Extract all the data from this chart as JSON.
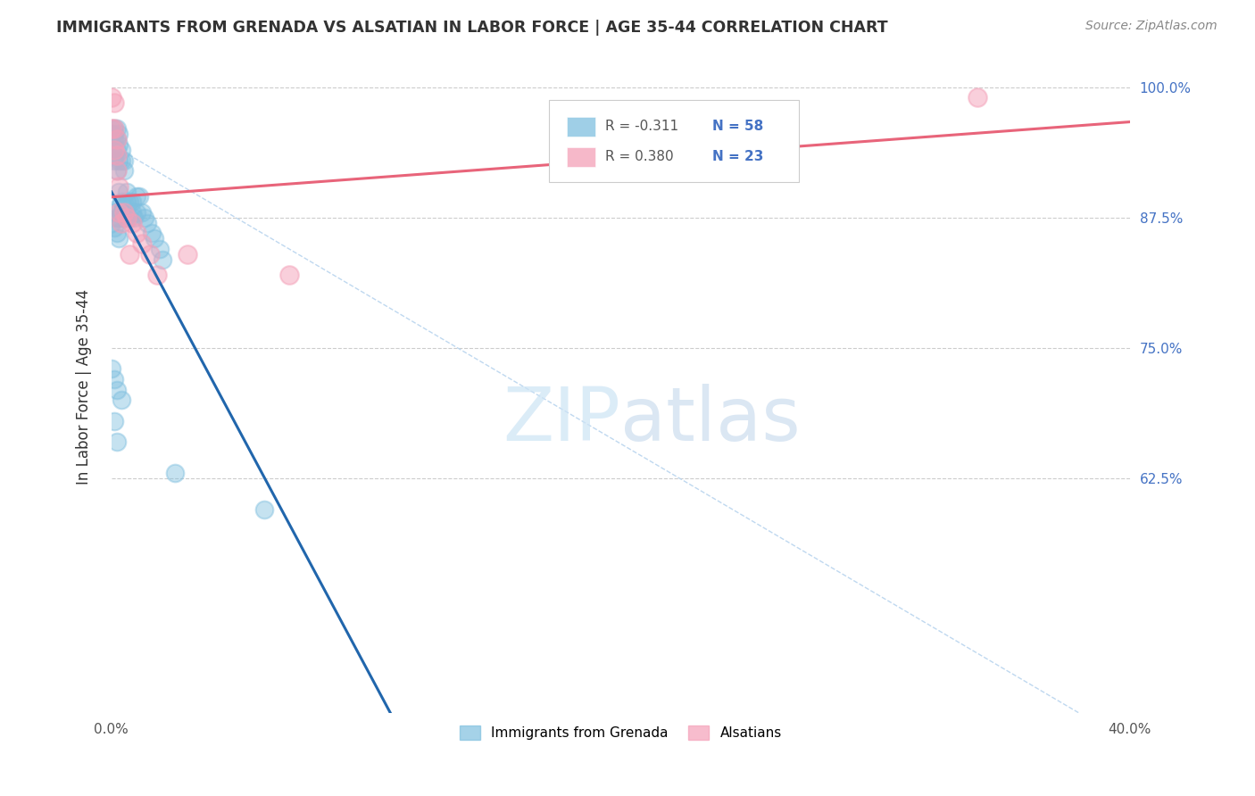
{
  "title": "IMMIGRANTS FROM GRENADA VS ALSATIAN IN LABOR FORCE | AGE 35-44 CORRELATION CHART",
  "source": "Source: ZipAtlas.com",
  "ylabel": "In Labor Force | Age 35-44",
  "xlim": [
    0.0,
    0.4
  ],
  "ylim": [
    0.4,
    1.025
  ],
  "xtick_labels": [
    "0.0%",
    "",
    "",
    "",
    "",
    "",
    "",
    "",
    "40.0%"
  ],
  "xtick_vals": [
    0.0,
    0.05,
    0.1,
    0.15,
    0.2,
    0.25,
    0.3,
    0.35,
    0.4
  ],
  "ytick_labels": [
    "62.5%",
    "75.0%",
    "87.5%",
    "100.0%"
  ],
  "ytick_vals": [
    0.625,
    0.75,
    0.875,
    1.0
  ],
  "blue_color": "#7fbfdf",
  "pink_color": "#f4a0b8",
  "blue_line_color": "#2166ac",
  "pink_line_color": "#e8647a",
  "dashed_color": "#b8d4ee",
  "watermark_color": "#cde4f5",
  "grenada_x": [
    0.0,
    0.0,
    0.0,
    0.001,
    0.001,
    0.001,
    0.001,
    0.001,
    0.001,
    0.002,
    0.002,
    0.002,
    0.002,
    0.002,
    0.003,
    0.003,
    0.003,
    0.003,
    0.003,
    0.003,
    0.004,
    0.004,
    0.004,
    0.004,
    0.005,
    0.005,
    0.005,
    0.005,
    0.006,
    0.006,
    0.006,
    0.007,
    0.007,
    0.008,
    0.008,
    0.009,
    0.01,
    0.01,
    0.011,
    0.012,
    0.013,
    0.014,
    0.016,
    0.017,
    0.019,
    0.02,
    0.0,
    0.001,
    0.002,
    0.003,
    0.0,
    0.001,
    0.002,
    0.004,
    0.001,
    0.002,
    0.025,
    0.06
  ],
  "grenada_y": [
    0.96,
    0.955,
    0.94,
    0.96,
    0.955,
    0.95,
    0.935,
    0.93,
    0.88,
    0.96,
    0.95,
    0.94,
    0.92,
    0.875,
    0.955,
    0.945,
    0.93,
    0.9,
    0.885,
    0.875,
    0.94,
    0.93,
    0.89,
    0.88,
    0.93,
    0.92,
    0.885,
    0.875,
    0.9,
    0.89,
    0.875,
    0.89,
    0.875,
    0.89,
    0.88,
    0.875,
    0.895,
    0.88,
    0.895,
    0.88,
    0.875,
    0.87,
    0.86,
    0.855,
    0.845,
    0.835,
    0.87,
    0.865,
    0.86,
    0.855,
    0.73,
    0.72,
    0.71,
    0.7,
    0.68,
    0.66,
    0.63,
    0.595
  ],
  "alsatian_x": [
    0.0,
    0.0,
    0.001,
    0.001,
    0.001,
    0.002,
    0.002,
    0.002,
    0.003,
    0.003,
    0.004,
    0.005,
    0.006,
    0.007,
    0.008,
    0.01,
    0.012,
    0.015,
    0.018,
    0.03,
    0.07,
    0.34
  ],
  "alsatian_y": [
    0.99,
    0.96,
    0.985,
    0.96,
    0.94,
    0.95,
    0.935,
    0.92,
    0.905,
    0.88,
    0.87,
    0.88,
    0.875,
    0.84,
    0.87,
    0.86,
    0.85,
    0.84,
    0.82,
    0.84,
    0.82,
    0.99
  ]
}
